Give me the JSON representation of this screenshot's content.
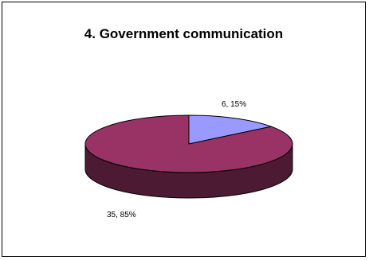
{
  "chart_data": {
    "type": "pie",
    "title": "4. Government communication",
    "slices": [
      {
        "value": 6,
        "percent": 15,
        "label": "6, 15%",
        "color": "#9999FF",
        "side_color": "#4C4C80"
      },
      {
        "value": 35,
        "percent": 85,
        "label": "35, 85%",
        "color": "#993366",
        "side_color": "#4D1A33"
      }
    ],
    "three_d": true,
    "legend": "none",
    "border_color": "#000000"
  }
}
